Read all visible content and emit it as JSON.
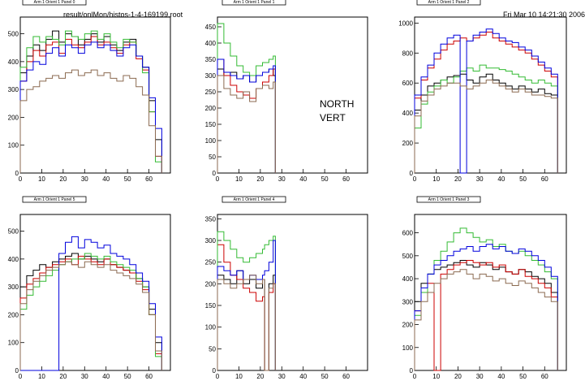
{
  "header": {
    "file_path": "result/onlMon/histos-1-4-169199.root",
    "timestamp": "Fri Mar 10 14:21:30 2006"
  },
  "annotation": {
    "line1": "NORTH",
    "line2": "VERT"
  },
  "colors": {
    "black": "#000000",
    "red": "#cc0000",
    "green": "#33bb33",
    "blue": "#0000dd",
    "brown": "#8b6a50"
  },
  "chart_data": [
    {
      "type": "line",
      "title": "Arm 1 Orient 1 Panel 0",
      "x": [
        0,
        3,
        6,
        9,
        12,
        15,
        18,
        21,
        24,
        27,
        30,
        33,
        36,
        39,
        42,
        45,
        48,
        51,
        54,
        57,
        60,
        63,
        66
      ],
      "xticks": [
        0,
        10,
        20,
        30,
        40,
        50,
        60
      ],
      "xlim": [
        0,
        70
      ],
      "yticks": [
        0,
        100,
        200,
        300,
        400,
        500
      ],
      "ylim": [
        0,
        560
      ],
      "series": [
        {
          "color": "black",
          "values": [
            360,
            420,
            460,
            440,
            480,
            510,
            470,
            500,
            490,
            460,
            480,
            500,
            470,
            490,
            460,
            440,
            470,
            480,
            420,
            380,
            260,
            120,
            0
          ]
        },
        {
          "color": "red",
          "values": [
            330,
            400,
            440,
            420,
            460,
            470,
            430,
            480,
            460,
            450,
            470,
            490,
            460,
            470,
            450,
            430,
            460,
            470,
            410,
            370,
            220,
            60,
            0
          ]
        },
        {
          "color": "green",
          "values": [
            380,
            450,
            490,
            470,
            490,
            480,
            460,
            510,
            490,
            480,
            500,
            510,
            480,
            500,
            470,
            450,
            480,
            470,
            420,
            360,
            220,
            40,
            0
          ]
        },
        {
          "color": "blue",
          "values": [
            330,
            370,
            400,
            390,
            430,
            450,
            420,
            460,
            450,
            430,
            460,
            470,
            450,
            460,
            440,
            420,
            450,
            460,
            420,
            380,
            270,
            160,
            0
          ]
        },
        {
          "color": "brown",
          "values": [
            260,
            300,
            310,
            330,
            340,
            350,
            340,
            360,
            370,
            350,
            360,
            370,
            350,
            360,
            340,
            330,
            350,
            340,
            310,
            280,
            170,
            60,
            0
          ]
        }
      ]
    },
    {
      "type": "line",
      "title": "Arm 1 Orient 1 Panel 1",
      "x": [
        0,
        3,
        6,
        9,
        12,
        15,
        18,
        21,
        24,
        26,
        27
      ],
      "xticks": [
        0,
        10,
        20,
        30,
        40,
        50,
        60
      ],
      "xlim": [
        0,
        70
      ],
      "yticks": [
        0,
        50,
        100,
        150,
        200,
        250,
        300,
        350,
        400,
        450
      ],
      "ylim": [
        0,
        480
      ],
      "series": [
        {
          "color": "black",
          "values": [
            320,
            300,
            310,
            290,
            300,
            280,
            300,
            310,
            320,
            300,
            0
          ]
        },
        {
          "color": "red",
          "values": [
            350,
            300,
            270,
            250,
            240,
            230,
            260,
            280,
            300,
            320,
            0
          ]
        },
        {
          "color": "green",
          "values": [
            460,
            400,
            360,
            330,
            310,
            300,
            330,
            340,
            350,
            360,
            0
          ]
        },
        {
          "color": "blue",
          "values": [
            350,
            310,
            300,
            290,
            300,
            280,
            300,
            310,
            320,
            330,
            0
          ]
        },
        {
          "color": "brown",
          "values": [
            300,
            260,
            240,
            230,
            250,
            220,
            260,
            270,
            260,
            280,
            0
          ]
        }
      ]
    },
    {
      "type": "line",
      "title": "Arm 1 Orient 1 Panel 2",
      "x": [
        0,
        3,
        6,
        9,
        12,
        15,
        18,
        21,
        24,
        27,
        30,
        33,
        36,
        39,
        42,
        45,
        48,
        51,
        54,
        57,
        60,
        63,
        66
      ],
      "xticks": [
        0,
        10,
        20,
        30,
        40,
        50,
        60
      ],
      "xlim": [
        0,
        70
      ],
      "yticks": [
        0,
        200,
        400,
        600,
        800,
        1000
      ],
      "ylim": [
        0,
        1040
      ],
      "series": [
        {
          "color": "black",
          "values": [
            420,
            520,
            580,
            600,
            620,
            640,
            650,
            660,
            620,
            600,
            640,
            660,
            620,
            600,
            580,
            560,
            580,
            560,
            540,
            560,
            530,
            520,
            0
          ]
        },
        {
          "color": "red",
          "values": [
            500,
            620,
            700,
            760,
            820,
            860,
            880,
            900,
            880,
            900,
            920,
            940,
            900,
            880,
            860,
            840,
            820,
            800,
            760,
            720,
            680,
            640,
            0
          ]
        },
        {
          "color": "green",
          "values": [
            300,
            460,
            540,
            580,
            620,
            600,
            640,
            680,
            700,
            680,
            720,
            700,
            700,
            690,
            680,
            660,
            640,
            620,
            600,
            620,
            600,
            580,
            0
          ]
        },
        {
          "color": "blue",
          "values": [
            520,
            640,
            720,
            800,
            860,
            900,
            920,
            0,
            880,
            920,
            940,
            960,
            930,
            900,
            880,
            870,
            840,
            820,
            780,
            740,
            700,
            660,
            0
          ]
        },
        {
          "color": "brown",
          "values": [
            380,
            480,
            520,
            560,
            580,
            600,
            600,
            580,
            560,
            580,
            600,
            620,
            600,
            580,
            560,
            540,
            560,
            540,
            520,
            520,
            510,
            500,
            0
          ]
        }
      ]
    },
    {
      "type": "line",
      "title": "Arm 1 Orient 1 Panel 5",
      "x": [
        0,
        3,
        6,
        9,
        12,
        15,
        18,
        21,
        24,
        27,
        30,
        33,
        36,
        39,
        42,
        45,
        48,
        51,
        54,
        57,
        60,
        63,
        66
      ],
      "xticks": [
        0,
        10,
        20,
        30,
        40,
        50,
        60
      ],
      "xlim": [
        0,
        70
      ],
      "yticks": [
        0,
        100,
        200,
        300,
        400,
        500
      ],
      "ylim": [
        0,
        560
      ],
      "series": [
        {
          "color": "black",
          "values": [
            300,
            340,
            360,
            380,
            370,
            390,
            400,
            410,
            420,
            400,
            410,
            400,
            390,
            400,
            380,
            370,
            360,
            350,
            330,
            300,
            220,
            100,
            0
          ]
        },
        {
          "color": "red",
          "values": [
            260,
            310,
            330,
            350,
            370,
            380,
            390,
            400,
            380,
            410,
            400,
            390,
            380,
            400,
            380,
            370,
            360,
            350,
            320,
            290,
            200,
            60,
            0
          ]
        },
        {
          "color": "green",
          "values": [
            220,
            270,
            300,
            320,
            340,
            360,
            380,
            390,
            400,
            400,
            420,
            410,
            400,
            410,
            390,
            380,
            370,
            360,
            330,
            300,
            200,
            50,
            0
          ]
        },
        {
          "color": "blue",
          "values": [
            0,
            0,
            0,
            0,
            0,
            0,
            420,
            460,
            480,
            440,
            470,
            460,
            440,
            450,
            420,
            410,
            400,
            380,
            350,
            320,
            240,
            120,
            0
          ]
        },
        {
          "color": "brown",
          "values": [
            240,
            290,
            320,
            340,
            360,
            370,
            380,
            390,
            380,
            370,
            390,
            380,
            370,
            380,
            360,
            350,
            340,
            330,
            310,
            280,
            200,
            70,
            0
          ]
        }
      ]
    },
    {
      "type": "line",
      "title": "Arm 1 Orient 1 Panel 4",
      "x": [
        0,
        3,
        6,
        9,
        12,
        15,
        18,
        21,
        22,
        24,
        26,
        27
      ],
      "xticks": [
        0,
        10,
        20,
        30,
        40,
        50,
        60
      ],
      "xlim": [
        0,
        70
      ],
      "yticks": [
        0,
        50,
        100,
        150,
        200,
        250,
        300,
        350
      ],
      "ylim": [
        0,
        360
      ],
      "series": [
        {
          "color": "black",
          "values": [
            220,
            210,
            200,
            230,
            200,
            210,
            190,
            210,
            0,
            200,
            220,
            0
          ]
        },
        {
          "color": "red",
          "values": [
            290,
            250,
            220,
            210,
            190,
            180,
            160,
            170,
            0,
            180,
            200,
            0
          ]
        },
        {
          "color": "green",
          "values": [
            320,
            300,
            280,
            260,
            250,
            260,
            270,
            280,
            290,
            300,
            310,
            0
          ]
        },
        {
          "color": "blue",
          "values": [
            240,
            230,
            220,
            230,
            210,
            220,
            210,
            220,
            230,
            250,
            300,
            0
          ]
        },
        {
          "color": "brown",
          "values": [
            210,
            200,
            190,
            200,
            210,
            220,
            200,
            210,
            0,
            190,
            200,
            0
          ]
        }
      ]
    },
    {
      "type": "line",
      "title": "Arm 1 Orient 1 Panel 3",
      "x": [
        0,
        3,
        6,
        9,
        12,
        15,
        18,
        21,
        24,
        27,
        30,
        33,
        36,
        39,
        42,
        45,
        48,
        51,
        54,
        57,
        60,
        63,
        66
      ],
      "xticks": [
        0,
        10,
        20,
        30,
        40,
        50,
        60
      ],
      "xlim": [
        0,
        70
      ],
      "yticks": [
        0,
        100,
        200,
        300,
        400,
        500,
        600
      ],
      "ylim": [
        0,
        680
      ],
      "series": [
        {
          "color": "black",
          "values": [
            300,
            380,
            420,
            440,
            450,
            460,
            470,
            480,
            460,
            450,
            470,
            460,
            440,
            450,
            430,
            420,
            440,
            430,
            410,
            400,
            380,
            340,
            0
          ]
        },
        {
          "color": "red",
          "values": [
            260,
            340,
            380,
            0,
            420,
            440,
            460,
            470,
            480,
            470,
            460,
            470,
            450,
            460,
            430,
            420,
            440,
            410,
            400,
            380,
            360,
            320,
            0
          ]
        },
        {
          "color": "green",
          "values": [
            240,
            340,
            420,
            480,
            520,
            560,
            600,
            620,
            600,
            580,
            560,
            570,
            540,
            550,
            520,
            510,
            520,
            500,
            480,
            460,
            430,
            400,
            0
          ]
        },
        {
          "color": "blue",
          "values": [
            260,
            360,
            420,
            460,
            480,
            500,
            520,
            530,
            540,
            520,
            540,
            550,
            530,
            540,
            520,
            510,
            530,
            520,
            500,
            480,
            450,
            410,
            0
          ]
        },
        {
          "color": "brown",
          "values": [
            220,
            300,
            340,
            380,
            400,
            420,
            430,
            440,
            420,
            400,
            420,
            410,
            390,
            400,
            380,
            370,
            390,
            380,
            360,
            340,
            320,
            300,
            0
          ]
        }
      ]
    }
  ]
}
